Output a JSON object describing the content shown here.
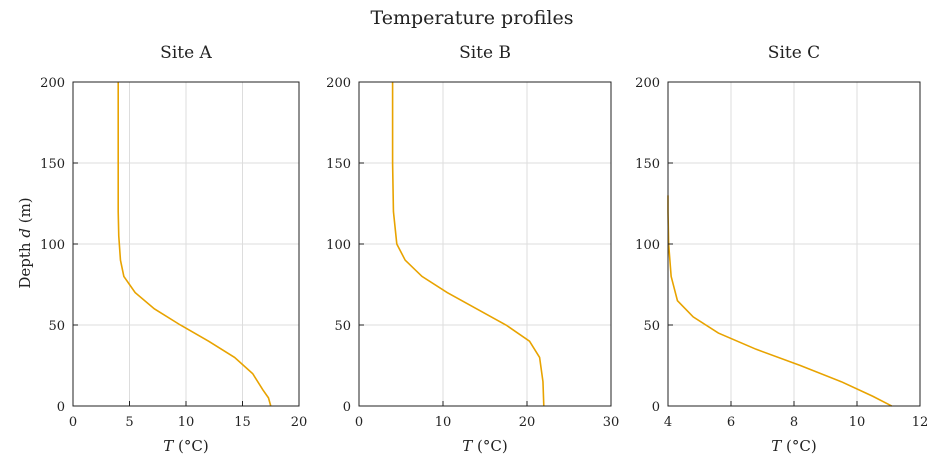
{
  "figure": {
    "suptitle": "Temperature profiles",
    "ylabel_prefix": "Depth",
    "ylabel_var": "d",
    "ylabel_unit": "(m)",
    "xlabel_var": "T",
    "xlabel_unit": "(°C)",
    "line_color": "#E8A300"
  },
  "chart_data": [
    {
      "type": "line",
      "title": "Site A",
      "xlabel": "T (°C)",
      "ylabel": "Depth d (m)",
      "xlim": [
        0,
        20
      ],
      "ylim": [
        0,
        200
      ],
      "xticks": [
        0,
        5,
        10,
        15,
        20
      ],
      "yticks": [
        0,
        50,
        100,
        150,
        200
      ],
      "grid": true,
      "series": [
        {
          "x": [
            4.0,
            4.0,
            4.0,
            4.05,
            4.2,
            4.5,
            5.5,
            7.2,
            9.5,
            12.0,
            14.3,
            15.9,
            16.8,
            17.3,
            17.5
          ],
          "y": [
            200,
            150,
            120,
            105,
            90,
            80,
            70,
            60,
            50,
            40,
            30,
            20,
            10,
            5,
            0
          ]
        }
      ]
    },
    {
      "type": "line",
      "title": "Site B",
      "xlabel": "T (°C)",
      "ylabel": "",
      "xlim": [
        0,
        30
      ],
      "ylim": [
        0,
        200
      ],
      "xticks": [
        0,
        10,
        20,
        30
      ],
      "yticks": [
        0,
        50,
        100,
        150,
        200
      ],
      "grid": true,
      "series": [
        {
          "x": [
            4.0,
            4.0,
            4.1,
            4.5,
            5.5,
            7.5,
            10.5,
            14.0,
            17.5,
            20.3,
            21.5,
            21.9,
            22.0
          ],
          "y": [
            200,
            150,
            120,
            100,
            90,
            80,
            70,
            60,
            50,
            40,
            30,
            15,
            0
          ]
        }
      ]
    },
    {
      "type": "line",
      "title": "Site C",
      "xlabel": "T (°C)",
      "ylabel": "",
      "xlim": [
        4,
        12
      ],
      "ylim": [
        0,
        200
      ],
      "xticks": [
        4,
        6,
        8,
        10,
        12
      ],
      "yticks": [
        0,
        50,
        100,
        150,
        200
      ],
      "grid": true,
      "series": [
        {
          "x": [
            4.0,
            4.0,
            4.02,
            4.1,
            4.3,
            4.8,
            5.6,
            6.8,
            8.2,
            9.5,
            10.5,
            11.1
          ],
          "y": [
            130,
            120,
            100,
            80,
            65,
            55,
            45,
            35,
            25,
            15,
            6,
            0
          ]
        }
      ]
    }
  ]
}
